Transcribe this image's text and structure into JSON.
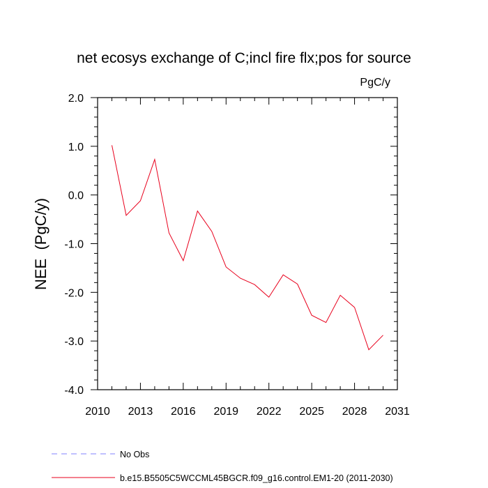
{
  "chart_data": {
    "type": "line",
    "title": "net ecosys exchange of C;incl fire flx;pos for source",
    "units": "PgC/y",
    "ylabel": "NEE  (PgC/y)",
    "xlabel": "",
    "xlim": [
      2010,
      2031
    ],
    "ylim": [
      -4.0,
      2.0
    ],
    "xticks": [
      2010,
      2013,
      2016,
      2019,
      2022,
      2025,
      2028,
      2031
    ],
    "yticks": [
      2.0,
      1.0,
      0.0,
      -1.0,
      -2.0,
      -3.0,
      -4.0
    ],
    "ytick_labels": [
      "2.0",
      "1.0",
      "0.0",
      "-1.0",
      "-2.0",
      "-3.0",
      "-4.0"
    ],
    "grid": false,
    "series": [
      {
        "name": "b.e15.B5505C5WCCML45BGCR.f09_g16.control.EM1-20 (2011-2030)",
        "color": "#e8001c",
        "x": [
          2011,
          2012,
          2013,
          2014,
          2015,
          2016,
          2017,
          2018,
          2019,
          2020,
          2021,
          2022,
          2023,
          2024,
          2025,
          2026,
          2027,
          2028,
          2029,
          2030
        ],
        "values": [
          1.02,
          -0.42,
          -0.12,
          0.73,
          -0.78,
          -1.35,
          -0.33,
          -0.75,
          -1.48,
          -1.71,
          -1.84,
          -2.1,
          -1.64,
          -1.83,
          -2.47,
          -2.62,
          -2.06,
          -2.31,
          -3.18,
          -2.88
        ]
      }
    ],
    "legend": [
      {
        "label": "No Obs",
        "style": "dashed",
        "color": "#8080ff"
      },
      {
        "label": "b.e15.B5505C5WCCML45BGCR.f09_g16.control.EM1-20 (2011-2030)",
        "style": "solid",
        "color": "#e8001c"
      }
    ]
  }
}
